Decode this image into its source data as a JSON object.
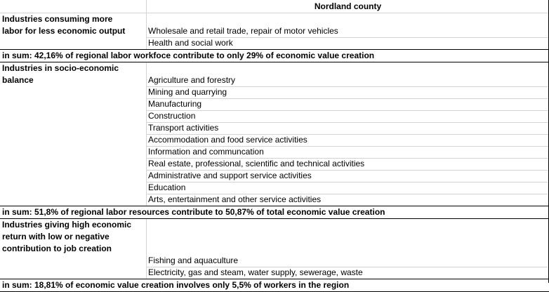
{
  "header": {
    "county": "Nordland county"
  },
  "sections": [
    {
      "label_lines": [
        "Industries consuming more",
        "labor for less economic output"
      ],
      "industries": [
        "Wholesale and retail trade, repair of motor vehicles",
        "Health and social work"
      ],
      "summary": "in sum: 42,16% of regional labor workfoce contribute to only 29% of economic value creation"
    },
    {
      "label_lines": [
        "Industries in socio-economic",
        "balance"
      ],
      "industries": [
        "Agriculture and forestry",
        "Mining and quarrying",
        "Manufacturing",
        "Construction",
        "Transport activities",
        "Accommodation and food service activities",
        "Information and communcation",
        "Real estate, professional, scientific and technical activities",
        "Administrative and support service activities",
        "Education",
        "Arts, entertainment and other service activities"
      ],
      "summary": "in sum: 51,8% of regional labor resources contribute to 50,87% of total economic value creation"
    },
    {
      "label_lines": [
        "Industries giving high economic",
        "return with low or negative",
        "contribution to job creation"
      ],
      "industries": [
        "Fishing and aquaculture",
        "Electricity, gas and steam, water supply, sewerage, waste"
      ],
      "summary": "in sum: 18,81% of economic value creation involves only 5,5% of workers in the region"
    }
  ]
}
